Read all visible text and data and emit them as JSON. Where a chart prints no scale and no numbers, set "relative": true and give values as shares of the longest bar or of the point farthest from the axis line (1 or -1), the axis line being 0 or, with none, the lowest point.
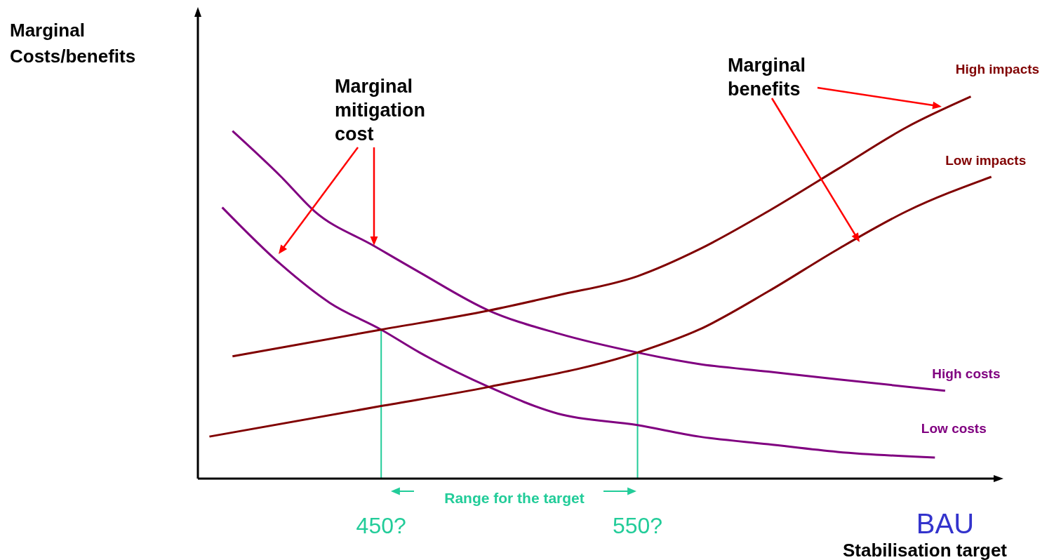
{
  "chart_data": {
    "type": "line",
    "relative": true,
    "ylabel": "Marginal Costs/benefits",
    "xlabel": "Stabilisation target",
    "xlim": [
      378.5,
      690
    ],
    "xticks": [
      {
        "value": 450,
        "label": "450?"
      },
      {
        "value": 550,
        "label": "550?"
      },
      {
        "value": 670,
        "label": "BAU"
      }
    ],
    "grid": false,
    "legend": false,
    "marker": "none",
    "line_style": "solid",
    "annotations": [
      "Marginal mitigation cost",
      "Marginal benefits",
      "Range for the target"
    ],
    "ref_lines": [
      {
        "axis": "x",
        "value": 450,
        "label": null,
        "color": "#22cc99"
      },
      {
        "axis": "x",
        "value": 550,
        "label": null,
        "color": "#22cc99"
      }
    ],
    "series": [
      {
        "name": "High costs",
        "color": "#800080",
        "x": [
          392,
          411,
          424,
          447,
          465,
          492,
          519,
          550,
          574,
          601,
          628,
          670
        ],
        "values": [
          0.91,
          0.79,
          0.7,
          0.61,
          0.54,
          0.44,
          0.38,
          0.33,
          0.3,
          0.28,
          0.26,
          0.23
        ]
      },
      {
        "name": "Low costs",
        "color": "#800080",
        "x": [
          388,
          411,
          430,
          450,
          465,
          492,
          519,
          550,
          574,
          601,
          628,
          666
        ],
        "values": [
          0.71,
          0.56,
          0.46,
          0.39,
          0.33,
          0.24,
          0.17,
          0.14,
          0.11,
          0.09,
          0.07,
          0.055
        ]
      },
      {
        "name": "High impacts",
        "color": "#800000",
        "x": [
          392,
          450,
          492,
          519,
          550,
          574,
          601,
          628,
          655,
          680
        ],
        "values": [
          0.32,
          0.39,
          0.44,
          0.48,
          0.53,
          0.6,
          0.7,
          0.81,
          0.92,
          1
        ]
      },
      {
        "name": "Low impacts",
        "color": "#800000",
        "x": [
          383,
          450,
          492,
          550,
          574,
          601,
          628,
          655,
          688
        ],
        "values": [
          0.11,
          0.19,
          0.24,
          0.33,
          0.39,
          0.49,
          0.6,
          0.7,
          0.79
        ]
      }
    ]
  }
}
